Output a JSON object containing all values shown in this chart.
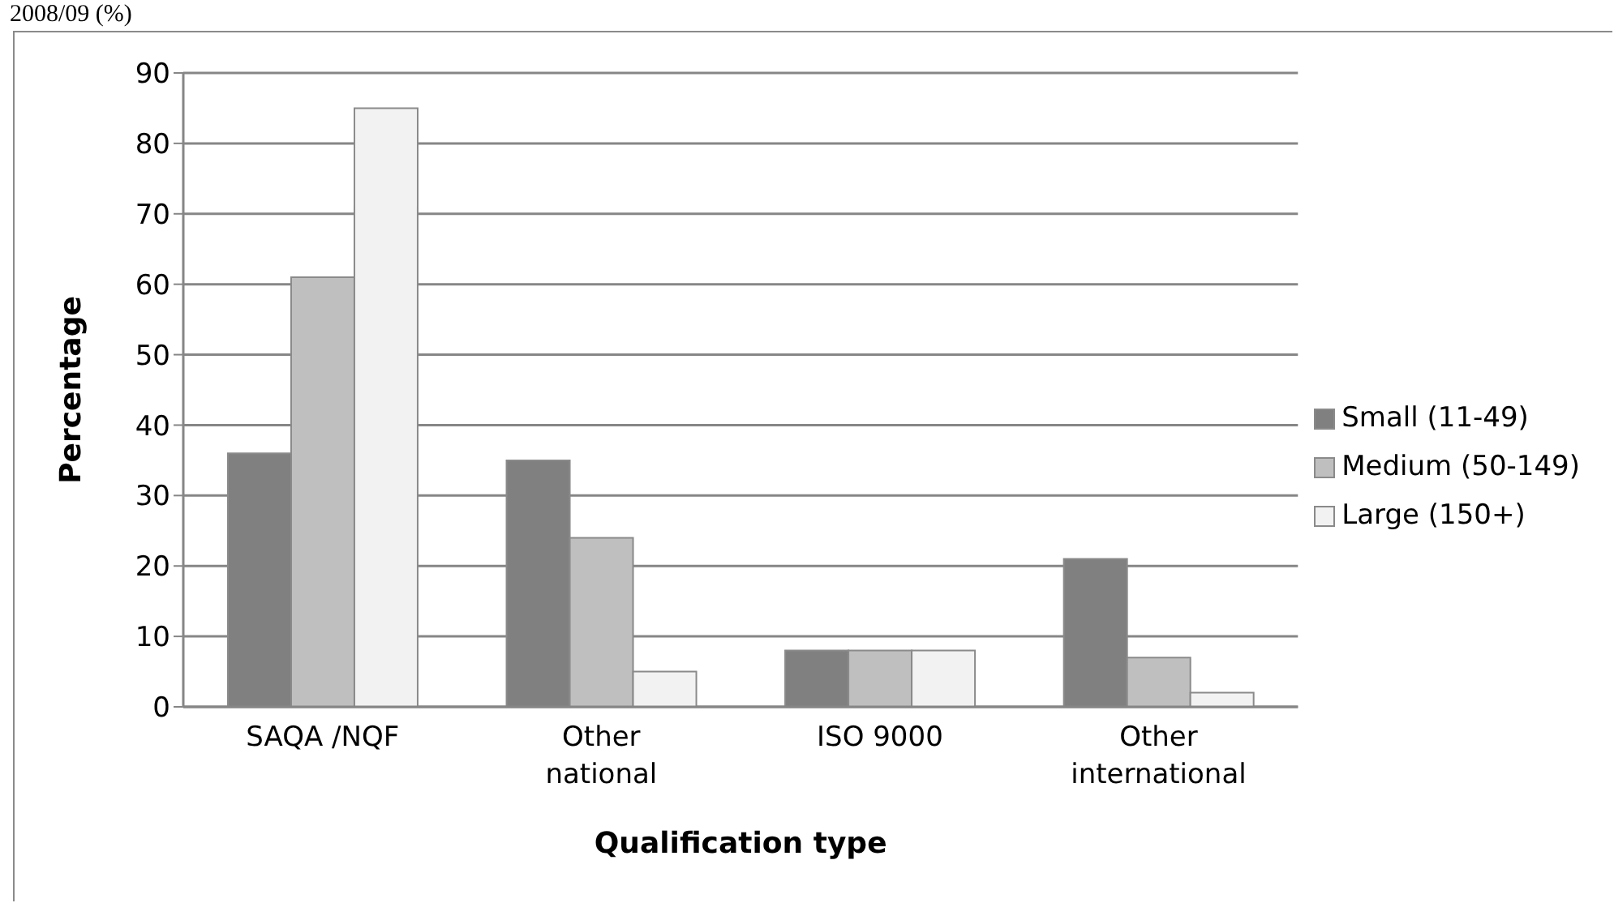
{
  "chart_data": {
    "type": "bar",
    "title": "2008/09 (%)",
    "xlabel": "Qualification type",
    "ylabel": "Percentage",
    "categories": [
      "SAQA /NQF",
      "Other national",
      "ISO 9000",
      "Other international"
    ],
    "series": [
      {
        "name": "Small (11-49)",
        "color": "#808080",
        "values": [
          36,
          35,
          8,
          21
        ]
      },
      {
        "name": "Medium (50-149)",
        "color": "#bfbfbf",
        "values": [
          61,
          24,
          8,
          7
        ]
      },
      {
        "name": "Large (150+)",
        "color": "#f2f2f2",
        "values": [
          85,
          5,
          8,
          2
        ]
      }
    ],
    "ylim": [
      0,
      90
    ],
    "yticks": [
      0,
      10,
      20,
      30,
      40,
      50,
      60,
      70,
      80,
      90
    ],
    "grid": "y",
    "legend": "right"
  }
}
